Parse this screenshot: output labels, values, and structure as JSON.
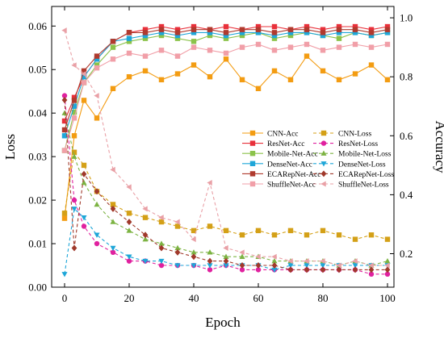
{
  "chart_data": {
    "type": "line",
    "xlabel": "Epoch",
    "ylabel_left": "Loss",
    "ylabel_right": "Accuracy",
    "xlim": [
      -4,
      102
    ],
    "ylim_left": [
      0,
      0.0645
    ],
    "ylim_right": [
      0.0865,
      1.0385
    ],
    "xticks": [
      0,
      20,
      40,
      60,
      80,
      100
    ],
    "yticks_left": [
      0.0,
      0.01,
      0.02,
      0.03,
      0.04,
      0.05,
      0.06
    ],
    "yticks_left_labels": [
      "0.00",
      "0.01",
      "0.02",
      "0.03",
      "0.04",
      "0.05",
      "0.06"
    ],
    "yticks_right": [
      0.2,
      0.4,
      0.6,
      0.8,
      1.0
    ],
    "yticks_right_labels": [
      "0.2",
      "0.4",
      "0.6",
      "0.8",
      "1.0"
    ],
    "grid": false,
    "legend_placement": "center-right",
    "series": [
      {
        "name": "CNN-Acc",
        "axis": "right",
        "style": "solid",
        "marker": "square",
        "color": "#F39C12",
        "x": [
          0,
          3,
          6,
          10,
          15,
          20,
          25,
          30,
          35,
          40,
          45,
          50,
          55,
          60,
          65,
          70,
          75,
          80,
          85,
          90,
          95,
          100
        ],
        "y": [
          0.32,
          0.6,
          0.72,
          0.66,
          0.76,
          0.8,
          0.82,
          0.79,
          0.81,
          0.84,
          0.8,
          0.86,
          0.79,
          0.76,
          0.82,
          0.79,
          0.87,
          0.82,
          0.79,
          0.81,
          0.84,
          0.79
        ]
      },
      {
        "name": "ResNet-Acc",
        "axis": "right",
        "style": "solid",
        "marker": "square",
        "color": "#E8303A",
        "x": [
          0,
          3,
          6,
          10,
          15,
          20,
          25,
          30,
          35,
          40,
          45,
          50,
          55,
          60,
          65,
          70,
          75,
          80,
          85,
          90,
          95,
          100
        ],
        "y": [
          0.65,
          0.73,
          0.8,
          0.86,
          0.92,
          0.95,
          0.96,
          0.97,
          0.96,
          0.97,
          0.96,
          0.97,
          0.96,
          0.97,
          0.97,
          0.96,
          0.97,
          0.96,
          0.97,
          0.97,
          0.96,
          0.97
        ]
      },
      {
        "name": "Mobile-Net-Acc",
        "axis": "right",
        "style": "solid",
        "marker": "square",
        "color": "#8BC34A",
        "x": [
          0,
          3,
          6,
          10,
          15,
          20,
          25,
          30,
          35,
          40,
          45,
          50,
          55,
          60,
          65,
          70,
          75,
          80,
          85,
          90,
          95,
          100
        ],
        "y": [
          0.55,
          0.68,
          0.78,
          0.84,
          0.9,
          0.92,
          0.93,
          0.94,
          0.93,
          0.92,
          0.94,
          0.93,
          0.94,
          0.95,
          0.93,
          0.94,
          0.95,
          0.94,
          0.93,
          0.95,
          0.94,
          0.95
        ]
      },
      {
        "name": "DenseNet-Acc",
        "axis": "right",
        "style": "solid",
        "marker": "square",
        "color": "#1EA6D8",
        "x": [
          0,
          3,
          6,
          10,
          15,
          20,
          25,
          30,
          35,
          40,
          45,
          50,
          55,
          60,
          65,
          70,
          75,
          80,
          85,
          90,
          95,
          100
        ],
        "y": [
          0.6,
          0.7,
          0.8,
          0.86,
          0.92,
          0.93,
          0.94,
          0.95,
          0.94,
          0.95,
          0.95,
          0.94,
          0.95,
          0.95,
          0.94,
          0.95,
          0.95,
          0.94,
          0.95,
          0.95,
          0.94,
          0.95
        ]
      },
      {
        "name": "ECARepNet-Acc",
        "axis": "right",
        "style": "solid",
        "marker": "square",
        "color": "#B03A2E",
        "x": [
          0,
          3,
          6,
          10,
          15,
          20,
          25,
          30,
          35,
          40,
          45,
          50,
          55,
          60,
          65,
          70,
          75,
          80,
          85,
          90,
          95,
          100
        ],
        "y": [
          0.62,
          0.72,
          0.82,
          0.87,
          0.92,
          0.95,
          0.95,
          0.96,
          0.95,
          0.96,
          0.96,
          0.95,
          0.96,
          0.96,
          0.95,
          0.96,
          0.96,
          0.95,
          0.96,
          0.96,
          0.95,
          0.96
        ]
      },
      {
        "name": "ShuffleNet-Acc",
        "axis": "right",
        "style": "solid",
        "marker": "square",
        "color": "#F19FA8",
        "x": [
          0,
          3,
          6,
          10,
          15,
          20,
          25,
          30,
          35,
          40,
          45,
          50,
          55,
          60,
          65,
          70,
          75,
          80,
          85,
          90,
          95,
          100
        ],
        "y": [
          0.55,
          0.66,
          0.78,
          0.83,
          0.86,
          0.88,
          0.87,
          0.89,
          0.87,
          0.9,
          0.89,
          0.88,
          0.9,
          0.91,
          0.89,
          0.9,
          0.91,
          0.89,
          0.9,
          0.91,
          0.9,
          0.91
        ]
      },
      {
        "name": "CNN-Loss",
        "axis": "left",
        "style": "dashed",
        "marker": "square",
        "color": "#D4A017",
        "x": [
          0,
          3,
          6,
          10,
          15,
          20,
          25,
          30,
          35,
          40,
          45,
          50,
          55,
          60,
          65,
          70,
          75,
          80,
          85,
          90,
          95,
          100
        ],
        "y": [
          0.017,
          0.031,
          0.028,
          0.022,
          0.019,
          0.017,
          0.016,
          0.015,
          0.014,
          0.013,
          0.014,
          0.013,
          0.012,
          0.013,
          0.012,
          0.013,
          0.012,
          0.013,
          0.012,
          0.011,
          0.012,
          0.011
        ]
      },
      {
        "name": "ResNet-Loss",
        "axis": "left",
        "style": "dashed",
        "marker": "circle",
        "color": "#E0219F",
        "x": [
          0,
          3,
          6,
          10,
          15,
          20,
          25,
          30,
          35,
          40,
          45,
          50,
          55,
          60,
          65,
          70,
          75,
          80,
          85,
          90,
          95,
          100
        ],
        "y": [
          0.044,
          0.02,
          0.014,
          0.01,
          0.008,
          0.006,
          0.006,
          0.005,
          0.005,
          0.005,
          0.004,
          0.005,
          0.004,
          0.004,
          0.004,
          0.004,
          0.004,
          0.004,
          0.004,
          0.004,
          0.003,
          0.003
        ]
      },
      {
        "name": "Mobile-Net-Loss",
        "axis": "left",
        "style": "dashed",
        "marker": "triangle-up",
        "color": "#7CB342",
        "x": [
          0,
          3,
          6,
          10,
          15,
          20,
          25,
          30,
          35,
          40,
          45,
          50,
          55,
          60,
          65,
          70,
          75,
          80,
          85,
          90,
          95,
          100
        ],
        "y": [
          0.04,
          0.03,
          0.024,
          0.019,
          0.015,
          0.013,
          0.011,
          0.01,
          0.009,
          0.008,
          0.008,
          0.007,
          0.007,
          0.007,
          0.006,
          0.006,
          0.006,
          0.006,
          0.005,
          0.006,
          0.005,
          0.006
        ]
      },
      {
        "name": "DenseNet-Loss",
        "axis": "left",
        "style": "dashed",
        "marker": "triangle-down",
        "color": "#1EA6D8",
        "x": [
          0,
          3,
          6,
          10,
          15,
          20,
          25,
          30,
          35,
          40,
          45,
          50,
          55,
          60,
          65,
          70,
          75,
          80,
          85,
          90,
          95,
          100
        ],
        "y": [
          0.003,
          0.018,
          0.016,
          0.012,
          0.009,
          0.007,
          0.006,
          0.006,
          0.005,
          0.005,
          0.005,
          0.005,
          0.005,
          0.005,
          0.004,
          0.005,
          0.005,
          0.005,
          0.005,
          0.005,
          0.005,
          0.005
        ]
      },
      {
        "name": "ECARepNet-Loss",
        "axis": "left",
        "style": "dashed",
        "marker": "diamond",
        "color": "#A0392B",
        "x": [
          0,
          3,
          6,
          10,
          15,
          20,
          25,
          30,
          35,
          40,
          45,
          50,
          55,
          60,
          65,
          70,
          75,
          80,
          85,
          90,
          95,
          100
        ],
        "y": [
          0.043,
          0.009,
          0.026,
          0.022,
          0.018,
          0.015,
          0.012,
          0.009,
          0.008,
          0.007,
          0.006,
          0.006,
          0.005,
          0.005,
          0.005,
          0.004,
          0.004,
          0.004,
          0.004,
          0.004,
          0.004,
          0.004
        ]
      },
      {
        "name": "ShuffleNet-Loss",
        "axis": "left",
        "style": "dashed",
        "marker": "triangle-left",
        "color": "#E9A0A6",
        "x": [
          0,
          3,
          6,
          10,
          15,
          20,
          25,
          30,
          35,
          40,
          45,
          50,
          55,
          60,
          65,
          70,
          75,
          80,
          85,
          90,
          95,
          100
        ],
        "y": [
          0.059,
          0.051,
          0.049,
          0.044,
          0.027,
          0.023,
          0.018,
          0.016,
          0.015,
          0.011,
          0.024,
          0.009,
          0.008,
          0.007,
          0.007,
          0.006,
          0.006,
          0.006,
          0.005,
          0.006,
          0.005,
          0.005
        ]
      }
    ]
  }
}
